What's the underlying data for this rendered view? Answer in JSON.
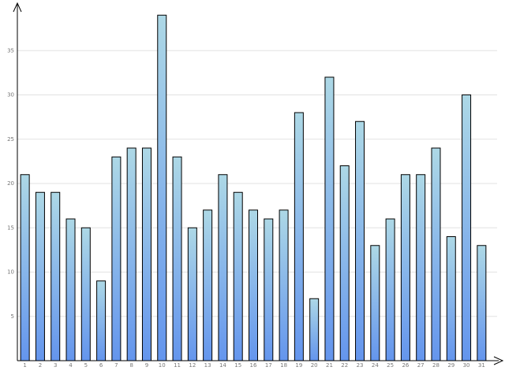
{
  "chart_data": {
    "type": "bar",
    "categories": [
      "1",
      "2",
      "3",
      "4",
      "5",
      "6",
      "7",
      "8",
      "9",
      "10",
      "11",
      "12",
      "13",
      "14",
      "15",
      "16",
      "17",
      "18",
      "19",
      "20",
      "21",
      "22",
      "23",
      "24",
      "25",
      "26",
      "27",
      "28",
      "29",
      "30",
      "31"
    ],
    "values": [
      21,
      19,
      19,
      16,
      15,
      9,
      23,
      24,
      24,
      39,
      23,
      15,
      17,
      21,
      19,
      17,
      16,
      17,
      28,
      7,
      32,
      22,
      27,
      13,
      16,
      21,
      21,
      24,
      14,
      30,
      13
    ],
    "gradient": [
      "#add8e6",
      "#6495ed"
    ],
    "ylim": [
      0,
      40
    ],
    "yticks": [
      5,
      10,
      15,
      20,
      25,
      30,
      35
    ],
    "grid": true
  }
}
